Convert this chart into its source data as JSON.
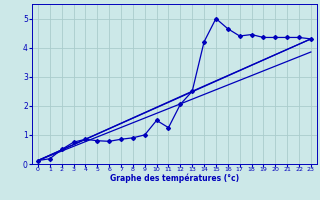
{
  "xlabel": "Graphe des températures (°c)",
  "bg_color": "#cce8e8",
  "line_color": "#0000bb",
  "grid_color": "#aacccc",
  "xlim": [
    -0.5,
    23.5
  ],
  "ylim": [
    0,
    5.5
  ],
  "xticks": [
    0,
    1,
    2,
    3,
    4,
    5,
    6,
    7,
    8,
    9,
    10,
    11,
    12,
    13,
    14,
    15,
    16,
    17,
    18,
    19,
    20,
    21,
    22,
    23
  ],
  "yticks": [
    0,
    1,
    2,
    3,
    4,
    5
  ],
  "series1_x": [
    0,
    1,
    2,
    3,
    4,
    5,
    6,
    7,
    8,
    9,
    10,
    11,
    12,
    13,
    14,
    15,
    16,
    17,
    18,
    19,
    20,
    21,
    22,
    23
  ],
  "series1_y": [
    0.12,
    0.18,
    0.5,
    0.75,
    0.85,
    0.8,
    0.78,
    0.85,
    0.9,
    1.0,
    1.5,
    1.25,
    2.05,
    2.5,
    4.2,
    5.0,
    4.65,
    4.4,
    4.45,
    4.35,
    4.35,
    4.35,
    4.35,
    4.3
  ],
  "series2_x": [
    0,
    23
  ],
  "series2_y": [
    0.12,
    4.3
  ],
  "series3_x": [
    0,
    13,
    23
  ],
  "series3_y": [
    0.12,
    2.5,
    4.3
  ],
  "series4_x": [
    0,
    23
  ],
  "series4_y": [
    0.12,
    3.85
  ]
}
